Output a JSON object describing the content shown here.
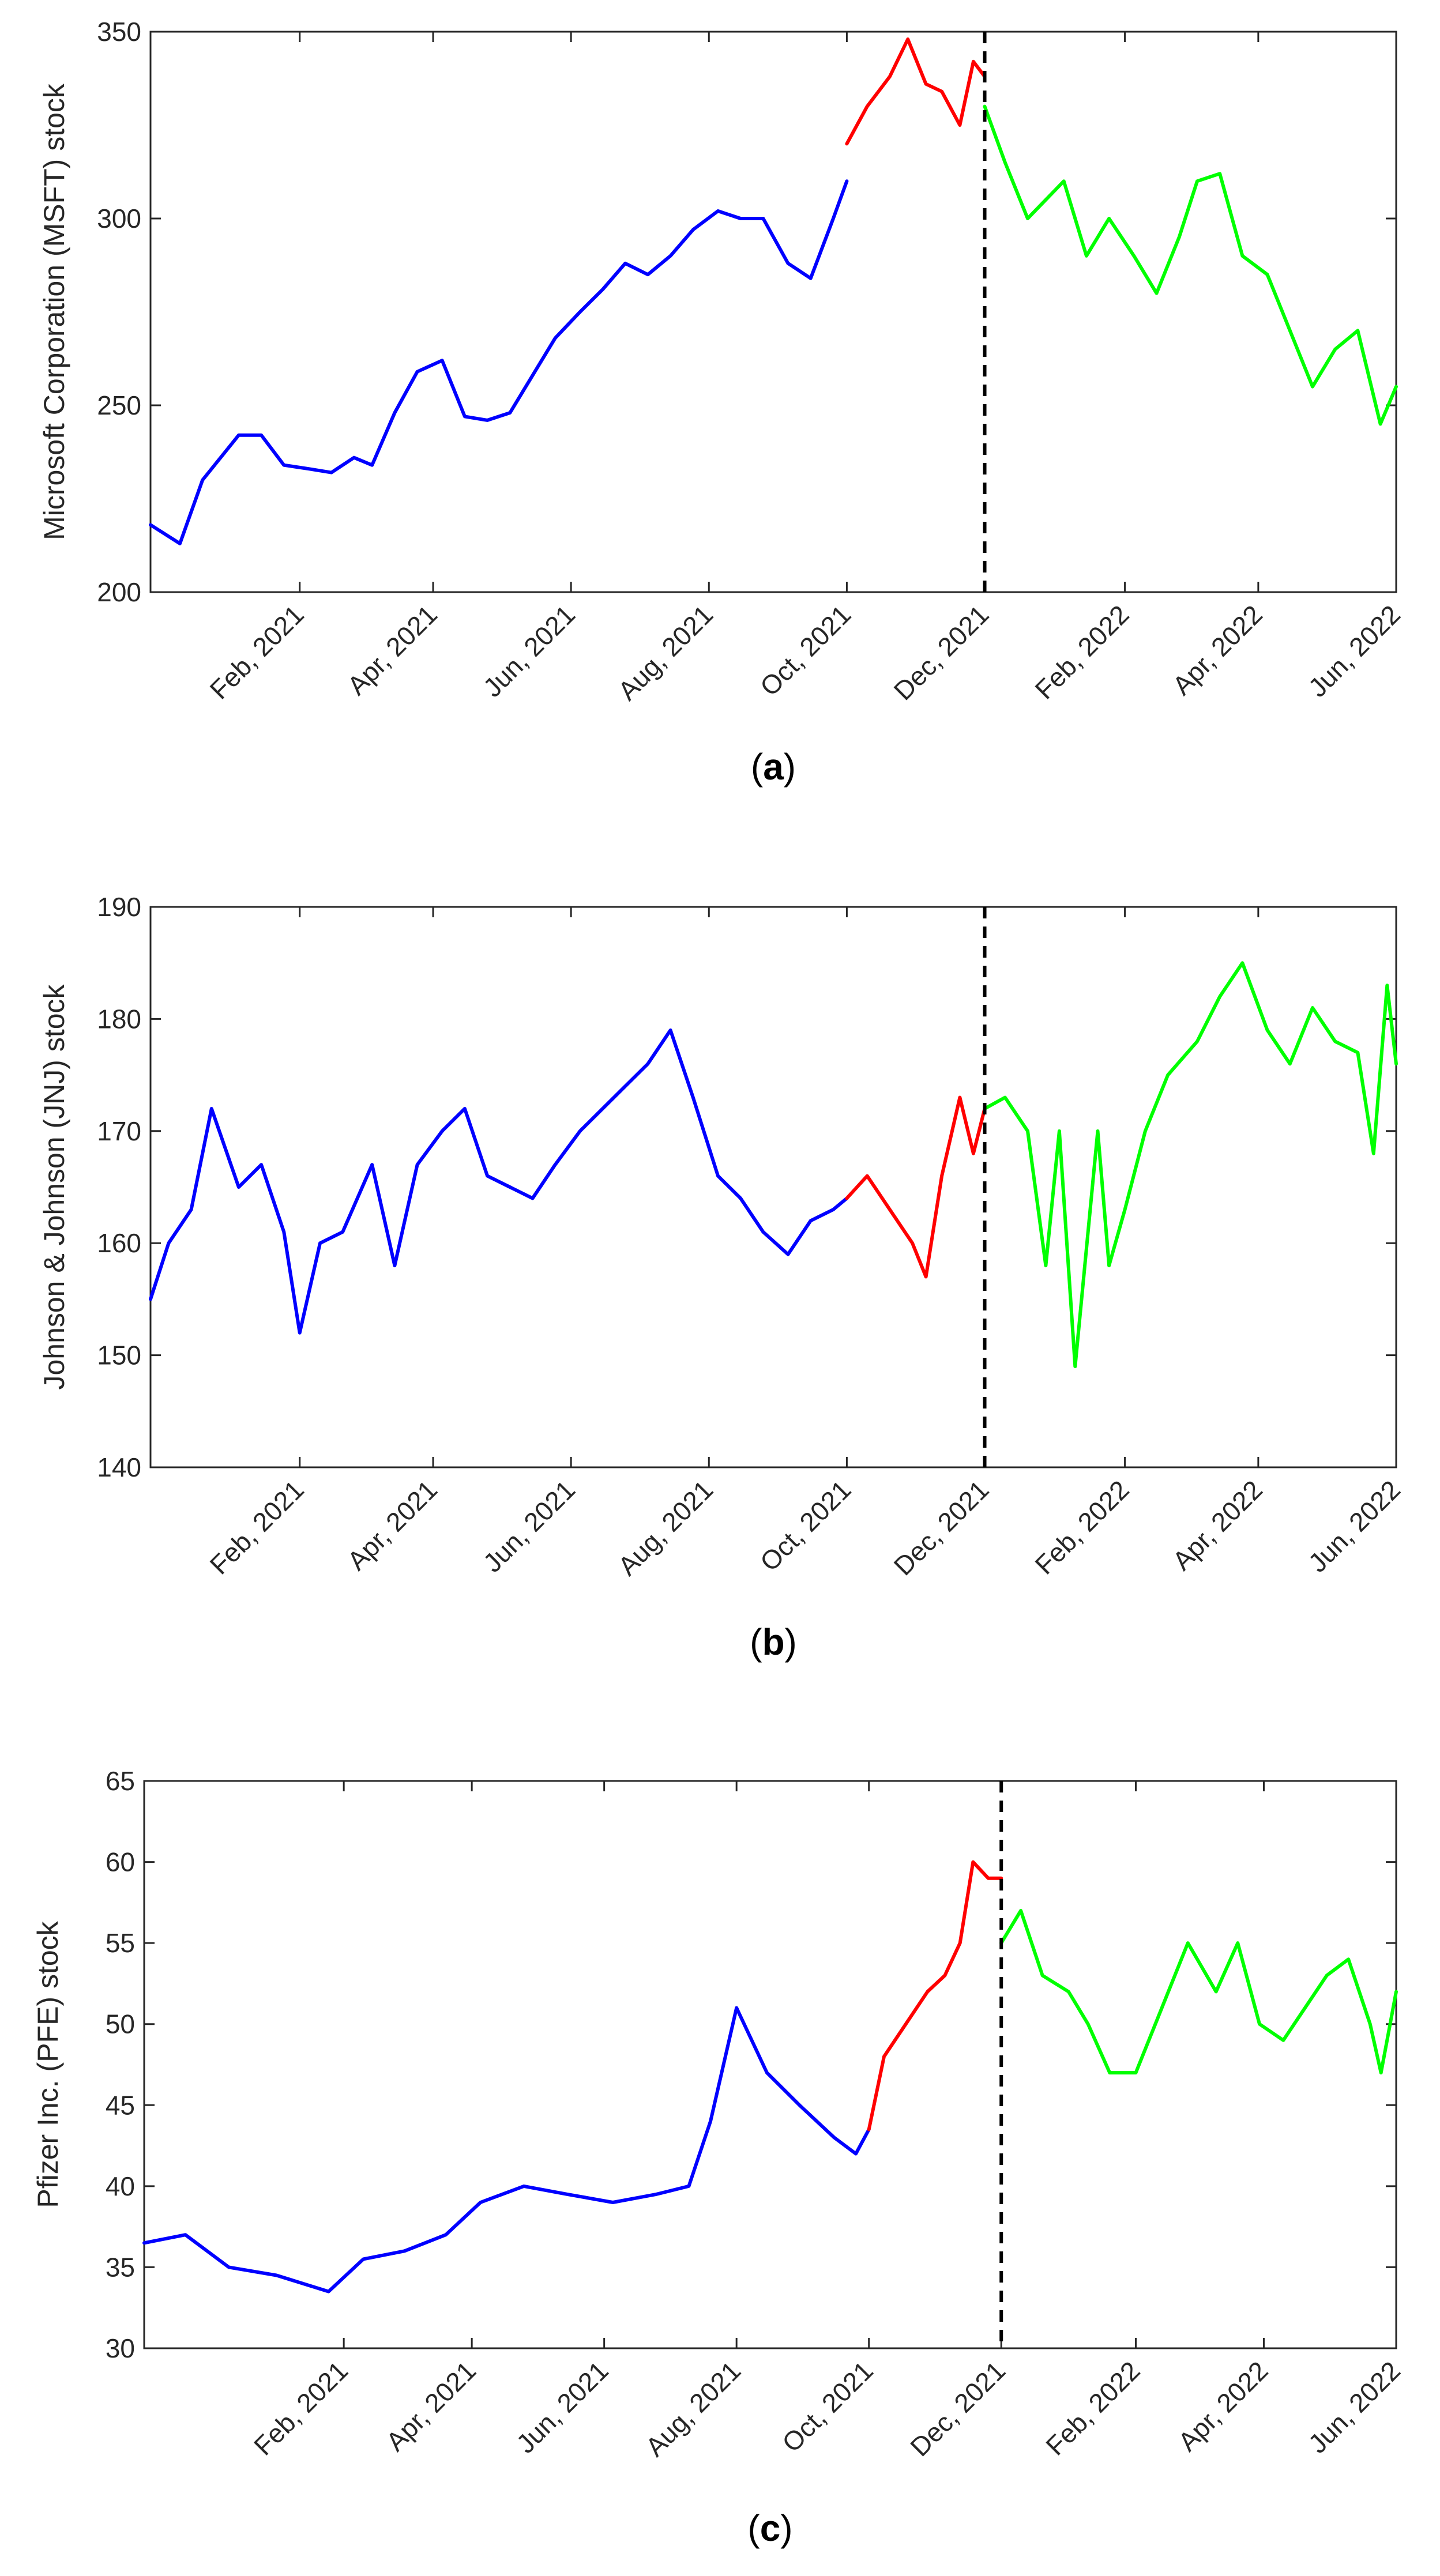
{
  "figure": {
    "panels": [
      {
        "letter": "a",
        "caption": "(a)"
      },
      {
        "letter": "b",
        "caption": "(b)"
      },
      {
        "letter": "c",
        "caption": "(c)"
      }
    ]
  },
  "chart_data": [
    {
      "type": "line",
      "title": "",
      "xlabel": "",
      "ylabel": "Microsoft Corporation (MSFT) stock",
      "caption": "(a)",
      "ylim": [
        200,
        350
      ],
      "yticks": [
        200,
        250,
        300,
        350
      ],
      "xlim": [
        "2020-11-27",
        "2022-06-01"
      ],
      "xtick_labels": [
        "Feb, 2021",
        "Apr, 2021",
        "Jun, 2021",
        "Aug, 2021",
        "Oct, 2021",
        "Dec, 2021",
        "Feb, 2022",
        "Apr, 2022",
        "Jun, 2022"
      ],
      "xtick_dates": [
        "2021-02-01",
        "2021-04-01",
        "2021-06-01",
        "2021-08-01",
        "2021-10-01",
        "2021-12-01",
        "2022-02-01",
        "2022-04-01",
        "2022-06-01"
      ],
      "grid": false,
      "vline": {
        "x": "2021-12-01",
        "style": "dashed",
        "color": "#000000"
      },
      "series": [
        {
          "color": "#0000FF",
          "x": [
            "2020-11-27",
            "2020-12-10",
            "2020-12-20",
            "2021-01-05",
            "2021-01-15",
            "2021-01-25",
            "2021-02-05",
            "2021-02-15",
            "2021-02-25",
            "2021-03-05",
            "2021-03-15",
            "2021-03-25",
            "2021-04-05",
            "2021-04-15",
            "2021-04-25",
            "2021-05-05",
            "2021-05-15",
            "2021-05-25",
            "2021-06-05",
            "2021-06-15",
            "2021-06-25",
            "2021-07-05",
            "2021-07-15",
            "2021-07-25",
            "2021-08-05",
            "2021-08-15",
            "2021-08-25",
            "2021-09-05",
            "2021-09-15",
            "2021-09-25",
            "2021-10-01"
          ],
          "y": [
            218,
            213,
            230,
            242,
            242,
            234,
            233,
            232,
            236,
            234,
            248,
            259,
            262,
            247,
            246,
            248,
            258,
            268,
            275,
            281,
            288,
            285,
            290,
            297,
            302,
            300,
            300,
            288,
            284,
            300,
            310
          ]
        },
        {
          "color": "#FF0000",
          "x": [
            "2021-10-01",
            "2021-10-10",
            "2021-10-20",
            "2021-10-28",
            "2021-11-05",
            "2021-11-12",
            "2021-11-20",
            "2021-11-26",
            "2021-12-01"
          ],
          "y": [
            320,
            330,
            338,
            348,
            336,
            334,
            325,
            342,
            338
          ]
        },
        {
          "color": "#00FF00",
          "x": [
            "2021-12-01",
            "2021-12-10",
            "2021-12-20",
            "2022-01-05",
            "2022-01-15",
            "2022-01-25",
            "2022-02-05",
            "2022-02-15",
            "2022-02-25",
            "2022-03-05",
            "2022-03-15",
            "2022-03-25",
            "2022-04-05",
            "2022-04-15",
            "2022-04-25",
            "2022-05-05",
            "2022-05-15",
            "2022-05-25",
            "2022-06-01"
          ],
          "y": [
            330,
            315,
            300,
            310,
            290,
            300,
            290,
            280,
            295,
            310,
            312,
            290,
            285,
            270,
            255,
            265,
            270,
            245,
            255
          ]
        }
      ]
    },
    {
      "type": "line",
      "title": "",
      "xlabel": "",
      "ylabel": "Johnson & Johnson (JNJ) stock",
      "caption": "(b)",
      "ylim": [
        140,
        190
      ],
      "yticks": [
        140,
        150,
        160,
        170,
        180,
        190
      ],
      "xlim": [
        "2020-11-27",
        "2022-06-01"
      ],
      "xtick_labels": [
        "Feb, 2021",
        "Apr, 2021",
        "Jun, 2021",
        "Aug, 2021",
        "Oct, 2021",
        "Dec, 2021",
        "Feb, 2022",
        "Apr, 2022",
        "Jun, 2022"
      ],
      "xtick_dates": [
        "2021-02-01",
        "2021-04-01",
        "2021-06-01",
        "2021-08-01",
        "2021-10-01",
        "2021-12-01",
        "2022-02-01",
        "2022-04-01",
        "2022-06-01"
      ],
      "grid": false,
      "vline": {
        "x": "2021-12-01",
        "style": "dashed",
        "color": "#000000"
      },
      "series": [
        {
          "color": "#0000FF",
          "x": [
            "2020-11-27",
            "2020-12-05",
            "2020-12-15",
            "2020-12-24",
            "2021-01-05",
            "2021-01-15",
            "2021-01-25",
            "2021-02-01",
            "2021-02-10",
            "2021-02-20",
            "2021-03-05",
            "2021-03-15",
            "2021-03-25",
            "2021-04-05",
            "2021-04-15",
            "2021-04-25",
            "2021-05-05",
            "2021-05-15",
            "2021-05-25",
            "2021-06-05",
            "2021-06-15",
            "2021-06-25",
            "2021-07-05",
            "2021-07-15",
            "2021-07-25",
            "2021-08-05",
            "2021-08-15",
            "2021-08-25",
            "2021-09-05",
            "2021-09-15",
            "2021-09-25",
            "2021-10-01"
          ],
          "y": [
            155,
            160,
            163,
            172,
            165,
            167,
            161,
            152,
            160,
            161,
            167,
            158,
            167,
            170,
            172,
            166,
            165,
            164,
            167,
            170,
            172,
            174,
            176,
            179,
            173,
            166,
            164,
            161,
            159,
            162,
            163,
            164
          ]
        },
        {
          "color": "#FF0000",
          "x": [
            "2021-10-01",
            "2021-10-10",
            "2021-10-20",
            "2021-10-30",
            "2021-11-05",
            "2021-11-12",
            "2021-11-20",
            "2021-11-26",
            "2021-12-01"
          ],
          "y": [
            164,
            166,
            163,
            160,
            157,
            166,
            173,
            168,
            172
          ]
        },
        {
          "color": "#00FF00",
          "x": [
            "2021-12-01",
            "2021-12-10",
            "2021-12-20",
            "2021-12-28",
            "2022-01-03",
            "2022-01-10",
            "2022-01-20",
            "2022-01-25",
            "2022-02-01",
            "2022-02-10",
            "2022-02-20",
            "2022-03-05",
            "2022-03-15",
            "2022-03-25",
            "2022-04-05",
            "2022-04-15",
            "2022-04-25",
            "2022-05-05",
            "2022-05-15",
            "2022-05-22",
            "2022-05-28",
            "2022-06-01"
          ],
          "y": [
            172,
            173,
            170,
            158,
            170,
            149,
            170,
            158,
            163,
            170,
            175,
            178,
            182,
            185,
            179,
            176,
            181,
            178,
            177,
            168,
            183,
            176
          ]
        }
      ]
    },
    {
      "type": "line",
      "title": "",
      "xlabel": "",
      "ylabel": "Pfizer Inc. (PFE) stock",
      "caption": "(c)",
      "ylim": [
        30,
        65
      ],
      "yticks": [
        30,
        35,
        40,
        45,
        50,
        55,
        60,
        65
      ],
      "xlim": [
        "2020-11-01",
        "2022-06-01"
      ],
      "xtick_labels": [
        "Feb, 2021",
        "Apr, 2021",
        "Jun, 2021",
        "Aug, 2021",
        "Oct, 2021",
        "Dec, 2021",
        "Feb, 2022",
        "Apr, 2022",
        "Jun, 2022"
      ],
      "xtick_dates": [
        "2021-02-01",
        "2021-04-01",
        "2021-06-01",
        "2021-08-01",
        "2021-10-01",
        "2021-12-01",
        "2022-02-01",
        "2022-04-01",
        "2022-06-01"
      ],
      "grid": false,
      "vline": {
        "x": "2021-12-01",
        "style": "dashed",
        "color": "#000000"
      },
      "series": [
        {
          "color": "#0000FF",
          "x": [
            "2020-11-01",
            "2020-11-20",
            "2020-12-10",
            "2021-01-01",
            "2021-01-25",
            "2021-02-10",
            "2021-03-01",
            "2021-03-20",
            "2021-04-05",
            "2021-04-25",
            "2021-05-15",
            "2021-06-05",
            "2021-06-25",
            "2021-07-10",
            "2021-07-20",
            "2021-08-01",
            "2021-08-15",
            "2021-08-30",
            "2021-09-15",
            "2021-09-25",
            "2021-10-01"
          ],
          "y": [
            36.5,
            37,
            35,
            34.5,
            33.5,
            35.5,
            36,
            37,
            39,
            40,
            39.5,
            39,
            39.5,
            40,
            44,
            51,
            47,
            45,
            43,
            42,
            43.5
          ]
        },
        {
          "color": "#FF0000",
          "x": [
            "2021-10-01",
            "2021-10-08",
            "2021-10-18",
            "2021-10-28",
            "2021-11-05",
            "2021-11-12",
            "2021-11-18",
            "2021-11-25",
            "2021-12-01"
          ],
          "y": [
            43.5,
            48,
            50,
            52,
            53,
            55,
            60,
            59,
            59
          ]
        },
        {
          "color": "#00FF00",
          "x": [
            "2021-12-01",
            "2021-12-10",
            "2021-12-20",
            "2022-01-01",
            "2022-01-10",
            "2022-01-20",
            "2022-02-01",
            "2022-02-10",
            "2022-02-25",
            "2022-03-10",
            "2022-03-20",
            "2022-03-30",
            "2022-04-10",
            "2022-04-20",
            "2022-04-30",
            "2022-05-10",
            "2022-05-20",
            "2022-05-25",
            "2022-06-01"
          ],
          "y": [
            55,
            57,
            53,
            52,
            50,
            47,
            47,
            50,
            55,
            52,
            55,
            50,
            49,
            51,
            53,
            54,
            50,
            47,
            52
          ]
        }
      ]
    }
  ]
}
